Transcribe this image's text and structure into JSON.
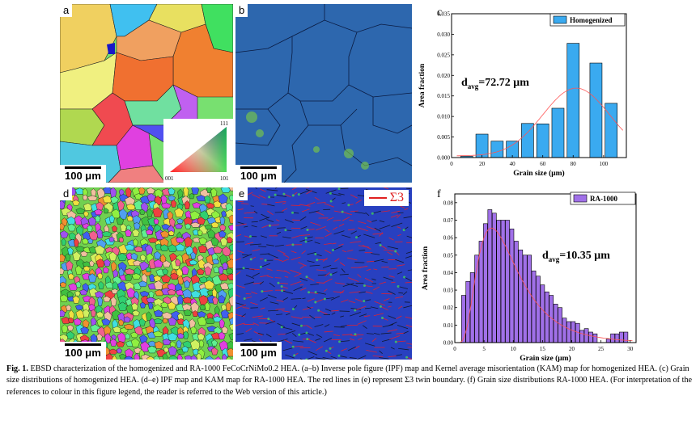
{
  "panels": {
    "a": {
      "label": "a",
      "scale": "100 μm"
    },
    "b": {
      "label": "b",
      "scale": "100 μm"
    },
    "d": {
      "label": "d",
      "scale": "100 μm"
    },
    "e": {
      "label": "e",
      "scale": "100 μm",
      "legend": "Σ3",
      "legend_color": "#e02020"
    }
  },
  "ipf_key": {
    "t001": "001",
    "t101": "101",
    "t111": "111"
  },
  "caption": {
    "label": "Fig. 1.",
    "text": "EBSD characterization of the homogenized and RA-1000 FeCoCrNiMo0.2 HEA. (a–b) Inverse pole figure (IPF) map and Kernel average misorientation (KAM) map for homogenized HEA. (c) Grain size distributions of homogenized HEA. (d–e) IPF map and KAM map for RA-1000 HEA. The red lines in (e) represent Σ3 twin boundary. (f) Grain size distributions RA-1000 HEA. (For interpretation of the references to colour in this figure legend, the reader is referred to the Web version of this article.)"
  },
  "chart_data": [
    {
      "type": "bar",
      "panel": "c",
      "legend": "Homogenized",
      "bar_color": "#3aaaf0",
      "fit_color": "#ff5555",
      "xlabel": "Grain size (μm)",
      "ylabel": "Area fraction",
      "annotation": {
        "main": "d",
        "sub": "avg",
        "rest": "=72.72 μm"
      },
      "xlim": [
        0,
        115
      ],
      "ylim": [
        0,
        0.035
      ],
      "xticks": [
        0,
        20,
        40,
        60,
        80,
        100
      ],
      "yticks": [
        0.0,
        0.005,
        0.01,
        0.015,
        0.02,
        0.025,
        0.03,
        0.035
      ],
      "ytick_labels": [
        "0.000",
        "0.005",
        "0.010",
        "0.015",
        "0.020",
        "0.025",
        "0.030",
        "0.035"
      ],
      "bar_width": 8,
      "x": [
        10,
        20,
        30,
        40,
        50,
        60,
        70,
        80,
        90,
        95,
        105
      ],
      "values": [
        0.0003,
        0.0057,
        0.004,
        0.004,
        0.0083,
        0.0082,
        0.012,
        0.0278,
        0.0,
        0.023,
        0.0132
      ]
    },
    {
      "type": "bar",
      "panel": "f",
      "legend": "RA-1000",
      "bar_color": "#a070e8",
      "fit_color": "#ff5555",
      "xlabel": "Grain size (μm)",
      "ylabel": "Area fraction",
      "annotation": {
        "main": "d",
        "sub": "avg",
        "rest": "=10.35 μm"
      },
      "xlim": [
        0,
        31
      ],
      "ylim": [
        0,
        0.085
      ],
      "xticks": [
        0,
        5,
        10,
        15,
        20,
        25,
        30
      ],
      "yticks": [
        0.0,
        0.01,
        0.02,
        0.03,
        0.04,
        0.05,
        0.06,
        0.07,
        0.08
      ],
      "ytick_labels": [
        "0.00",
        "0.01",
        "0.02",
        "0.03",
        "0.04",
        "0.05",
        "0.06",
        "0.07",
        "0.08"
      ],
      "bar_width": 0.7,
      "x": [
        1.5,
        2.25,
        3,
        3.75,
        4.5,
        5.25,
        6,
        6.75,
        7.5,
        8.25,
        9,
        9.75,
        10.5,
        11.25,
        12,
        12.75,
        13.5,
        14.25,
        15,
        15.75,
        16.5,
        17.25,
        18,
        18.75,
        19.5,
        20.25,
        21,
        21.75,
        22.5,
        23.25,
        24,
        24.75,
        25.5,
        26.25,
        27,
        27.75,
        28.5,
        29.25
      ],
      "values": [
        0.027,
        0.035,
        0.04,
        0.05,
        0.058,
        0.068,
        0.076,
        0.074,
        0.07,
        0.07,
        0.07,
        0.065,
        0.058,
        0.053,
        0.05,
        0.05,
        0.041,
        0.038,
        0.033,
        0.029,
        0.027,
        0.022,
        0.02,
        0.014,
        0.012,
        0.012,
        0.011,
        0.007,
        0.008,
        0.006,
        0.005,
        0.0,
        0.0,
        0.002,
        0.005,
        0.005,
        0.006,
        0.006
      ]
    }
  ]
}
